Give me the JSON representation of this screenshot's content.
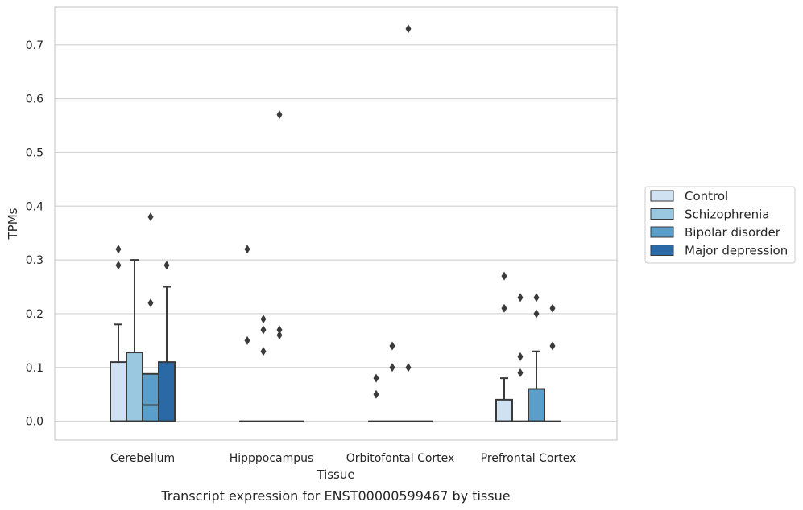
{
  "chart_data": {
    "type": "box",
    "xlabel": "Tissue",
    "ylabel": "TPMs",
    "caption": "Transcript expression for ENST00000599467 by tissue",
    "ylim": [
      -0.035,
      0.77
    ],
    "yticks": [
      0.0,
      0.1,
      0.2,
      0.3,
      0.4,
      0.5,
      0.6,
      0.7
    ],
    "ytick_labels": [
      "0.0",
      "0.1",
      "0.2",
      "0.3",
      "0.4",
      "0.5",
      "0.6",
      "0.7"
    ],
    "grid": "horizontal",
    "legend_position": "right",
    "categories": [
      "Cerebellum",
      "Hipppocampus",
      "Orbitofontal Cortex",
      "Prefrontal Cortex"
    ],
    "series": [
      {
        "name": "Control",
        "color": "#d0e1f2",
        "boxes": [
          {
            "q1": 0.0,
            "median": 0.0,
            "q3": 0.11,
            "whisker_low": 0.0,
            "whisker_high": 0.18,
            "outliers": [
              0.29,
              0.32
            ]
          },
          {
            "q1": 0.0,
            "median": 0.0,
            "q3": 0.0,
            "whisker_low": 0.0,
            "whisker_high": 0.0,
            "outliers": [
              0.15,
              0.32
            ]
          },
          {
            "q1": 0.0,
            "median": 0.0,
            "q3": 0.0,
            "whisker_low": 0.0,
            "whisker_high": 0.0,
            "outliers": [
              0.05,
              0.08
            ]
          },
          {
            "q1": 0.0,
            "median": 0.0,
            "q3": 0.04,
            "whisker_low": 0.0,
            "whisker_high": 0.08,
            "outliers": [
              0.21,
              0.27
            ]
          }
        ]
      },
      {
        "name": "Schizophrenia",
        "color": "#9ac8e0",
        "boxes": [
          {
            "q1": 0.0,
            "median": 0.0,
            "q3": 0.128,
            "whisker_low": 0.0,
            "whisker_high": 0.3,
            "outliers": []
          },
          {
            "q1": 0.0,
            "median": 0.0,
            "q3": 0.0,
            "whisker_low": 0.0,
            "whisker_high": 0.0,
            "outliers": [
              0.13,
              0.17,
              0.19
            ]
          },
          {
            "q1": 0.0,
            "median": 0.0,
            "q3": 0.0,
            "whisker_low": 0.0,
            "whisker_high": 0.0,
            "outliers": [
              0.1,
              0.14
            ]
          },
          {
            "q1": 0.0,
            "median": 0.0,
            "q3": 0.0,
            "whisker_low": 0.0,
            "whisker_high": 0.0,
            "outliers": [
              0.09,
              0.12,
              0.23
            ]
          }
        ]
      },
      {
        "name": "Bipolar disorder",
        "color": "#5a9ec9",
        "boxes": [
          {
            "q1": 0.0,
            "median": 0.03,
            "q3": 0.088,
            "whisker_low": 0.0,
            "whisker_high": 0.088,
            "outliers": [
              0.22,
              0.38
            ]
          },
          {
            "q1": 0.0,
            "median": 0.0,
            "q3": 0.0,
            "whisker_low": 0.0,
            "whisker_high": 0.0,
            "outliers": [
              0.16,
              0.17,
              0.57
            ]
          },
          {
            "q1": 0.0,
            "median": 0.0,
            "q3": 0.0,
            "whisker_low": 0.0,
            "whisker_high": 0.0,
            "outliers": [
              0.1,
              0.73
            ]
          },
          {
            "q1": 0.0,
            "median": 0.0,
            "q3": 0.06,
            "whisker_low": 0.0,
            "whisker_high": 0.13,
            "outliers": [
              0.2,
              0.23
            ]
          }
        ]
      },
      {
        "name": "Major depression",
        "color": "#2a68a6",
        "boxes": [
          {
            "q1": 0.0,
            "median": 0.0,
            "q3": 0.11,
            "whisker_low": 0.0,
            "whisker_high": 0.25,
            "outliers": [
              0.29
            ]
          },
          {
            "q1": 0.0,
            "median": 0.0,
            "q3": 0.0,
            "whisker_low": 0.0,
            "whisker_high": 0.0,
            "outliers": []
          },
          {
            "q1": 0.0,
            "median": 0.0,
            "q3": 0.0,
            "whisker_low": 0.0,
            "whisker_high": 0.0,
            "outliers": []
          },
          {
            "q1": 0.0,
            "median": 0.0,
            "q3": 0.0,
            "whisker_low": 0.0,
            "whisker_high": 0.0,
            "outliers": [
              0.14,
              0.21
            ]
          }
        ]
      }
    ]
  }
}
